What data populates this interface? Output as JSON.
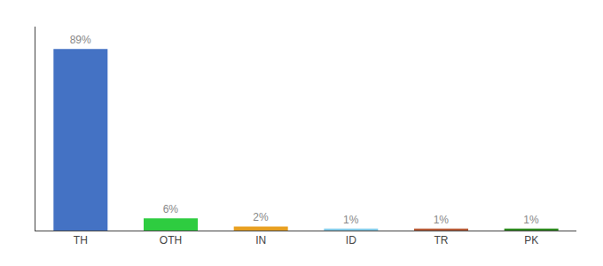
{
  "chart_data": {
    "type": "bar",
    "categories": [
      "TH",
      "OTH",
      "IN",
      "ID",
      "TR",
      "PK"
    ],
    "values": [
      89,
      6,
      2,
      1,
      1,
      1
    ],
    "value_labels": [
      "89%",
      "6%",
      "2%",
      "1%",
      "1%",
      "1%"
    ],
    "colors": [
      "#4472C4",
      "#2ECC40",
      "#E8A020",
      "#87CEEB",
      "#B85C38",
      "#2E8B20"
    ],
    "ylim": [
      0,
      100
    ],
    "grid": false,
    "tick_labels": "x",
    "data_labels": true
  }
}
